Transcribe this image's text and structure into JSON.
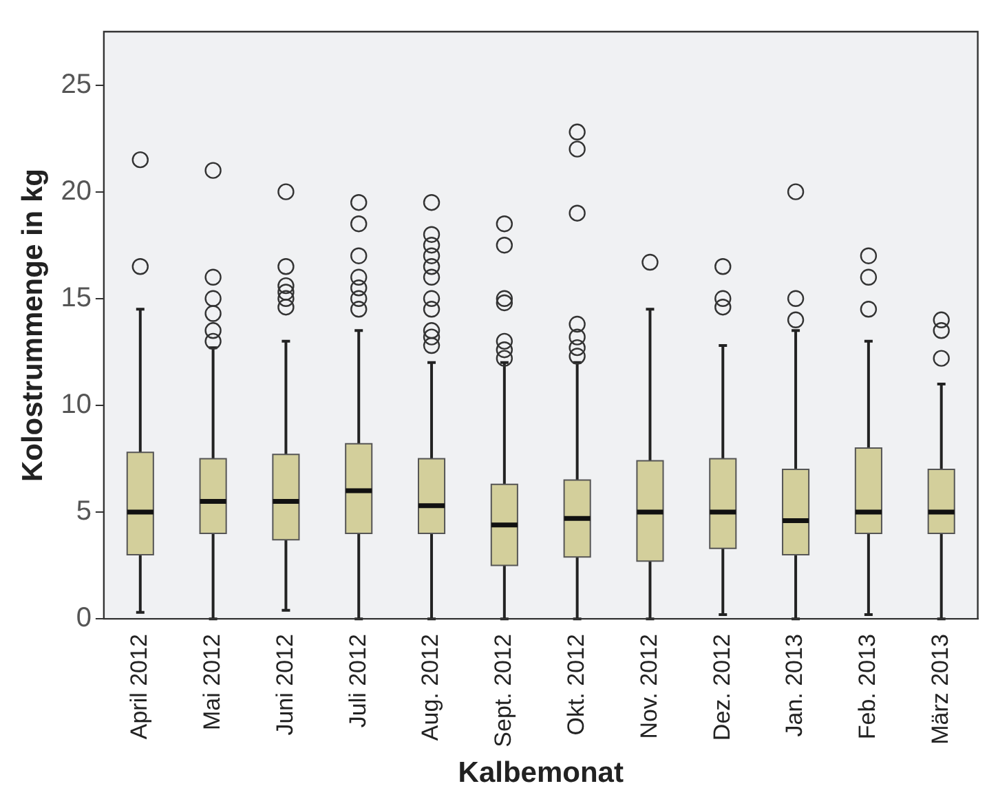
{
  "chart_data": {
    "type": "box",
    "xlabel": "Kalbemonat",
    "ylabel": "Kolostrummenge in kg",
    "categories": [
      "April 2012",
      "Mai 2012",
      "Juni 2012",
      "Juli 2012",
      "Aug. 2012",
      "Sept. 2012",
      "Okt. 2012",
      "Nov. 2012",
      "Dez. 2012",
      "Jan. 2013",
      "Feb. 2013",
      "März 2013"
    ],
    "color": "#d3cf9b",
    "ylim": [
      0,
      27.5
    ],
    "yticks": [
      0,
      5,
      10,
      15,
      20,
      25
    ],
    "grid": false,
    "legend": false,
    "boxes": [
      {
        "low": 0.3,
        "q1": 3,
        "median": 5,
        "q3": 7.8,
        "high": 14.5,
        "outliers": [
          16.5,
          21.5
        ]
      },
      {
        "low": 0,
        "q1": 4,
        "median": 5.5,
        "q3": 7.5,
        "high": 12.7,
        "outliers": [
          13,
          13.5,
          14.3,
          15,
          16,
          21
        ]
      },
      {
        "low": 0.4,
        "q1": 3.7,
        "median": 5.5,
        "q3": 7.7,
        "high": 13,
        "outliers": [
          14.6,
          15,
          15.3,
          15.6,
          16.5,
          20
        ]
      },
      {
        "low": 0,
        "q1": 4,
        "median": 6,
        "q3": 8.2,
        "high": 13.5,
        "outliers": [
          14.5,
          15,
          15.5,
          16,
          17,
          18.5,
          19.5
        ]
      },
      {
        "low": 0,
        "q1": 4,
        "median": 5.3,
        "q3": 7.5,
        "high": 12,
        "outliers": [
          12.8,
          13.2,
          13.5,
          14.5,
          15,
          16,
          16.5,
          17,
          17.5,
          18,
          19.5
        ]
      },
      {
        "low": 0,
        "q1": 2.5,
        "median": 4.4,
        "q3": 6.3,
        "high": 12,
        "outliers": [
          12.2,
          12.6,
          13,
          14.8,
          15,
          17.5,
          18.5
        ]
      },
      {
        "low": 0,
        "q1": 2.9,
        "median": 4.7,
        "q3": 6.5,
        "high": 12,
        "outliers": [
          12.3,
          12.7,
          13.2,
          13.8,
          19,
          22,
          22.8
        ]
      },
      {
        "low": 0,
        "q1": 2.7,
        "median": 5,
        "q3": 7.4,
        "high": 14.5,
        "outliers": [
          16.7
        ]
      },
      {
        "low": 0.2,
        "q1": 3.3,
        "median": 5,
        "q3": 7.5,
        "high": 12.8,
        "outliers": [
          14.6,
          15,
          16.5
        ]
      },
      {
        "low": 0,
        "q1": 3,
        "median": 4.6,
        "q3": 7,
        "high": 13.5,
        "outliers": [
          14,
          15,
          20
        ]
      },
      {
        "low": 0.2,
        "q1": 4,
        "median": 5,
        "q3": 8,
        "high": 13,
        "outliers": [
          14.5,
          16,
          17
        ]
      },
      {
        "low": 0,
        "q1": 4,
        "median": 5,
        "q3": 7,
        "high": 11,
        "outliers": [
          12.2,
          13.5,
          14
        ]
      }
    ]
  }
}
